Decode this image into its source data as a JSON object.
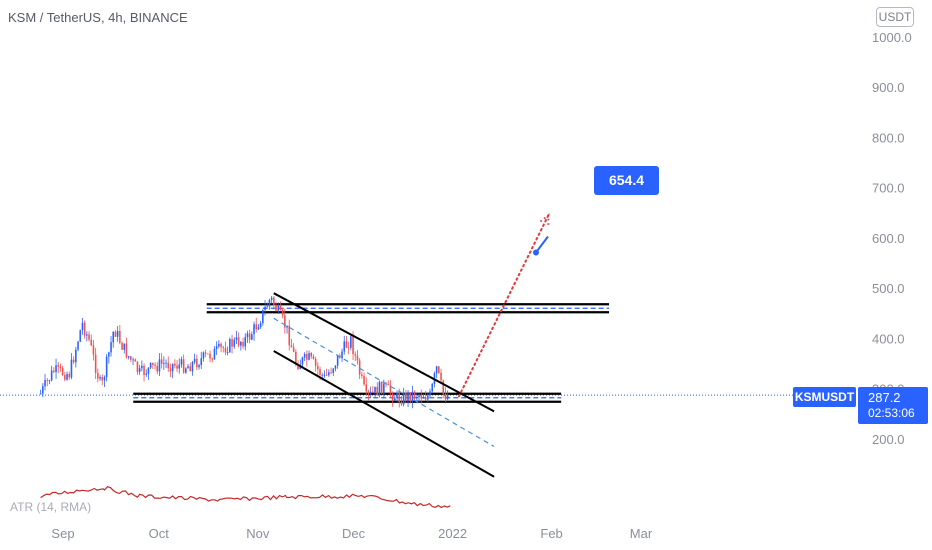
{
  "header": {
    "title": "KSM / TetherUS, 4h, BINANCE",
    "currency": "USDT"
  },
  "indicator": {
    "label": "ATR (14, RMA)"
  },
  "price_labels": {
    "symbol": "KSMUSDT",
    "price": "287.2",
    "countdown": "02:53:06"
  },
  "target_callout": {
    "value": "654.4"
  },
  "colors": {
    "up": "#2962ff",
    "down": "#ef5350",
    "atr": "#c62828",
    "accent": "#2962ff",
    "drawing": "#000000",
    "projection": "#e53935"
  },
  "chart_data": {
    "type": "candlestick",
    "title": "KSM / TetherUS, 4h, BINANCE",
    "x_ticks": [
      "Sep",
      "Oct",
      "Nov",
      "Dec",
      "2022",
      "Feb",
      "Mar"
    ],
    "y_ticks": [
      200,
      300,
      400,
      500,
      600,
      700,
      800,
      900,
      1000
    ],
    "ylim": [
      110,
      1030
    ],
    "last_price": 287.2,
    "price_path": [
      {
        "date": "2021-08-25",
        "price": 290
      },
      {
        "date": "2021-08-29",
        "price": 335
      },
      {
        "date": "2021-09-03",
        "price": 330
      },
      {
        "date": "2021-09-07",
        "price": 430
      },
      {
        "date": "2021-09-09",
        "price": 400
      },
      {
        "date": "2021-09-13",
        "price": 300
      },
      {
        "date": "2021-09-17",
        "price": 420
      },
      {
        "date": "2021-09-20",
        "price": 380
      },
      {
        "date": "2021-09-25",
        "price": 330
      },
      {
        "date": "2021-10-02",
        "price": 350
      },
      {
        "date": "2021-10-10",
        "price": 345
      },
      {
        "date": "2021-10-18",
        "price": 370
      },
      {
        "date": "2021-10-24",
        "price": 390
      },
      {
        "date": "2021-10-29",
        "price": 400
      },
      {
        "date": "2021-11-01",
        "price": 430
      },
      {
        "date": "2021-11-05",
        "price": 480
      },
      {
        "date": "2021-11-10",
        "price": 420
      },
      {
        "date": "2021-11-13",
        "price": 350
      },
      {
        "date": "2021-11-17",
        "price": 360
      },
      {
        "date": "2021-11-22",
        "price": 320
      },
      {
        "date": "2021-11-30",
        "price": 400
      },
      {
        "date": "2021-12-05",
        "price": 280
      },
      {
        "date": "2021-12-10",
        "price": 305
      },
      {
        "date": "2021-12-15",
        "price": 280
      },
      {
        "date": "2021-12-20",
        "price": 290
      },
      {
        "date": "2021-12-25",
        "price": 285
      },
      {
        "date": "2021-12-27",
        "price": 340
      },
      {
        "date": "2021-12-29",
        "price": 290
      },
      {
        "date": "2021-12-31",
        "price": 287
      }
    ],
    "atr_path": [
      {
        "date": "2021-08-25",
        "value": 16
      },
      {
        "date": "2021-09-07",
        "value": 22
      },
      {
        "date": "2021-09-14",
        "value": 24
      },
      {
        "date": "2021-09-25",
        "value": 16
      },
      {
        "date": "2021-10-20",
        "value": 12
      },
      {
        "date": "2021-11-10",
        "value": 15
      },
      {
        "date": "2021-12-05",
        "value": 16
      },
      {
        "date": "2021-12-20",
        "value": 8
      },
      {
        "date": "2022-01-01",
        "value": 5
      }
    ],
    "drawings": {
      "resistance_zone": 460,
      "support_zone": 282,
      "channel_upper": [
        {
          "date": "2021-11-06",
          "price": 490
        },
        {
          "date": "2022-01-14",
          "price": 255
        }
      ],
      "channel_lower": [
        {
          "date": "2021-11-06",
          "price": 375
        },
        {
          "date": "2022-01-14",
          "price": 125
        }
      ],
      "channel_mid": [
        {
          "date": "2021-11-06",
          "price": 440
        },
        {
          "date": "2022-01-14",
          "price": 185
        }
      ],
      "projection": [
        {
          "date": "2022-01-03",
          "price": 285
        },
        {
          "date": "2022-01-31",
          "price": 645
        }
      ],
      "target": 654.4
    }
  }
}
